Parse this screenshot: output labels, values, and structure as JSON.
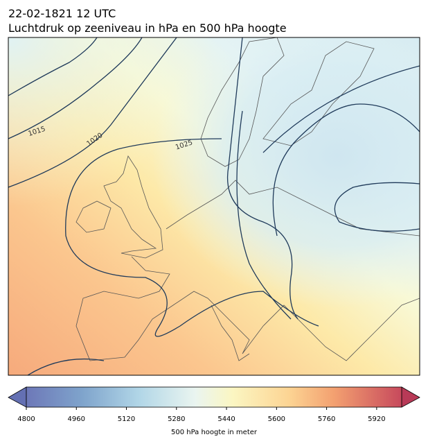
{
  "title": {
    "line1": "22-02-1821 12 UTC",
    "line2": "Luchtdruk op zeeniveau in hPa en 500 hPa hoogte"
  },
  "isobars": {
    "values": [
      1015,
      1020,
      1025
    ]
  },
  "colorbar": {
    "label": "500 hPa hoogte in meter",
    "lim": [
      4800,
      6000
    ],
    "ticks": [
      4800,
      4960,
      5120,
      5280,
      5440,
      5600,
      5760,
      5920
    ]
  }
}
